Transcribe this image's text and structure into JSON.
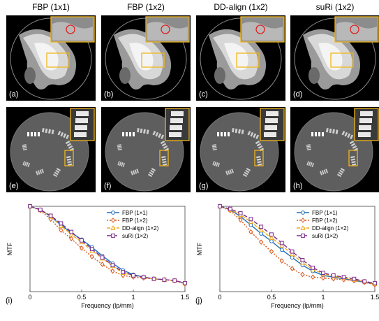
{
  "column_titles": [
    "FBP (1x1)",
    "FBP (1x2)",
    "DD-align (1x2)",
    "suRi (1x2)"
  ],
  "top_panel_labels": [
    "(a)",
    "(b)",
    "(c)",
    "(d)"
  ],
  "bottom_panel_labels": [
    "(e)",
    "(f)",
    "(g)",
    "(h)"
  ],
  "colors": {
    "fbp_1x1": "#1f6fb8",
    "fbp_1x2": "#d9561a",
    "dd_align": "#f0a81e",
    "suri": "#7b2a8c",
    "roi_box": "#f2b61a",
    "roi_circle": "#e02020"
  },
  "chart_data": [
    {
      "type": "line",
      "panel_label": "(i)",
      "xlabel": "Frequency (lp/mm)",
      "ylabel": "MTF",
      "xlim": [
        0,
        1.5
      ],
      "ylim": [
        0,
        1
      ],
      "xticks": [
        "0",
        "0.5",
        "1",
        "1.5"
      ],
      "legend_position": "top-right",
      "x": [
        0,
        0.1,
        0.2,
        0.3,
        0.4,
        0.5,
        0.6,
        0.7,
        0.8,
        0.9,
        1.0,
        1.1,
        1.2,
        1.3,
        1.4,
        1.5
      ],
      "series": [
        {
          "name": "FBP (1×1)",
          "values": [
            1.0,
            0.96,
            0.88,
            0.78,
            0.69,
            0.61,
            0.52,
            0.42,
            0.33,
            0.25,
            0.2,
            0.17,
            0.15,
            0.14,
            0.13,
            0.1
          ]
        },
        {
          "name": "FBP (1×2)",
          "values": [
            1.0,
            0.95,
            0.85,
            0.72,
            0.62,
            0.51,
            0.41,
            0.32,
            0.24,
            0.19,
            0.17,
            0.16,
            0.15,
            0.14,
            0.13,
            0.09
          ]
        },
        {
          "name": "DD-align (1×2)",
          "values": [
            1.0,
            0.96,
            0.88,
            0.77,
            0.67,
            0.58,
            0.48,
            0.39,
            0.3,
            0.22,
            0.19,
            0.17,
            0.15,
            0.14,
            0.13,
            0.1
          ]
        },
        {
          "name": "suRi (1×2)",
          "values": [
            1.0,
            0.96,
            0.89,
            0.8,
            0.7,
            0.6,
            0.5,
            0.4,
            0.31,
            0.23,
            0.19,
            0.17,
            0.15,
            0.14,
            0.13,
            0.1
          ]
        }
      ]
    },
    {
      "type": "line",
      "panel_label": "(j)",
      "xlabel": "Frequency (lp/mm)",
      "ylabel": "MTF",
      "xlim": [
        0,
        1.5
      ],
      "ylim": [
        0,
        1
      ],
      "xticks": [
        "0",
        "0.5",
        "1",
        "1.5"
      ],
      "legend_position": "top-right",
      "x": [
        0,
        0.1,
        0.2,
        0.3,
        0.4,
        0.5,
        0.6,
        0.7,
        0.8,
        0.9,
        1.0,
        1.1,
        1.2,
        1.3,
        1.4,
        1.5
      ],
      "series": [
        {
          "name": "FBP (1×1)",
          "values": [
            1.0,
            0.96,
            0.88,
            0.78,
            0.68,
            0.59,
            0.49,
            0.4,
            0.31,
            0.24,
            0.19,
            0.17,
            0.15,
            0.13,
            0.11,
            0.09
          ]
        },
        {
          "name": "FBP (1×2)",
          "values": [
            1.0,
            0.95,
            0.84,
            0.7,
            0.58,
            0.47,
            0.36,
            0.27,
            0.2,
            0.17,
            0.16,
            0.15,
            0.14,
            0.13,
            0.11,
            0.08
          ]
        },
        {
          "name": "DD-align (1×2)",
          "values": [
            1.0,
            0.96,
            0.9,
            0.82,
            0.72,
            0.63,
            0.54,
            0.44,
            0.34,
            0.26,
            0.21,
            0.18,
            0.16,
            0.14,
            0.12,
            0.09
          ]
        },
        {
          "name": "suRi (1×2)",
          "values": [
            1.0,
            0.97,
            0.92,
            0.85,
            0.76,
            0.67,
            0.57,
            0.47,
            0.37,
            0.28,
            0.22,
            0.19,
            0.17,
            0.15,
            0.12,
            0.1
          ]
        }
      ]
    }
  ]
}
